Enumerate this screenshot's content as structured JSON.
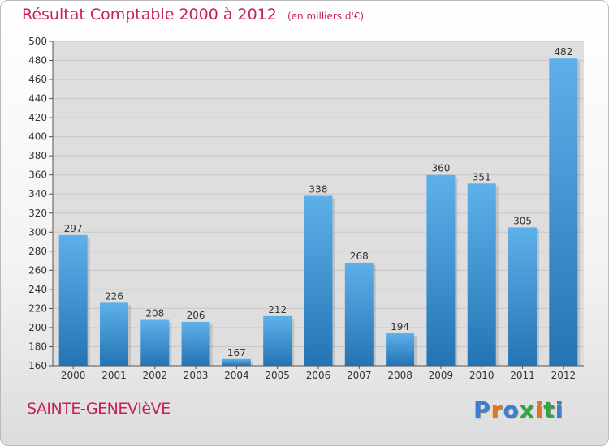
{
  "title": "Résultat Comptable 2000 à 2012",
  "subtitle": "(en milliers d'€)",
  "city": "SAINTE-GENEVIèVE",
  "brand": "Proxiti",
  "colors": {
    "title": "#c8205a",
    "bar_top": "#5eb0ea",
    "bar_bottom": "#2474b4",
    "grid": "#c8c8c8",
    "plot_bg": "#dedede",
    "brand_letters": [
      "#3a7fd0",
      "#e8731a",
      "#3a7fd0",
      "#2da845",
      "#e8731a",
      "#2da845",
      "#3a7fd0"
    ]
  },
  "chart_data": {
    "type": "bar",
    "categories": [
      "2000",
      "2001",
      "2002",
      "2003",
      "2004",
      "2005",
      "2006",
      "2007",
      "2008",
      "2009",
      "2010",
      "2011",
      "2012"
    ],
    "values": [
      297,
      226,
      208,
      206,
      167,
      212,
      338,
      268,
      194,
      360,
      351,
      305,
      482
    ],
    "data_labels": [
      "297",
      "226",
      "208",
      "206",
      "167",
      "212",
      "338",
      "268",
      "194",
      "360",
      "351",
      "305",
      "482"
    ],
    "ylim": [
      160,
      500
    ],
    "yticks": [
      "160",
      "180",
      "200",
      "220",
      "240",
      "260",
      "280",
      "300",
      "320",
      "340",
      "360",
      "380",
      "400",
      "420",
      "440",
      "460",
      "480",
      "500"
    ],
    "grid": true,
    "legend": "none",
    "title": "Résultat Comptable 2000 à 2012",
    "subtitle": "(en milliers d'€)"
  }
}
